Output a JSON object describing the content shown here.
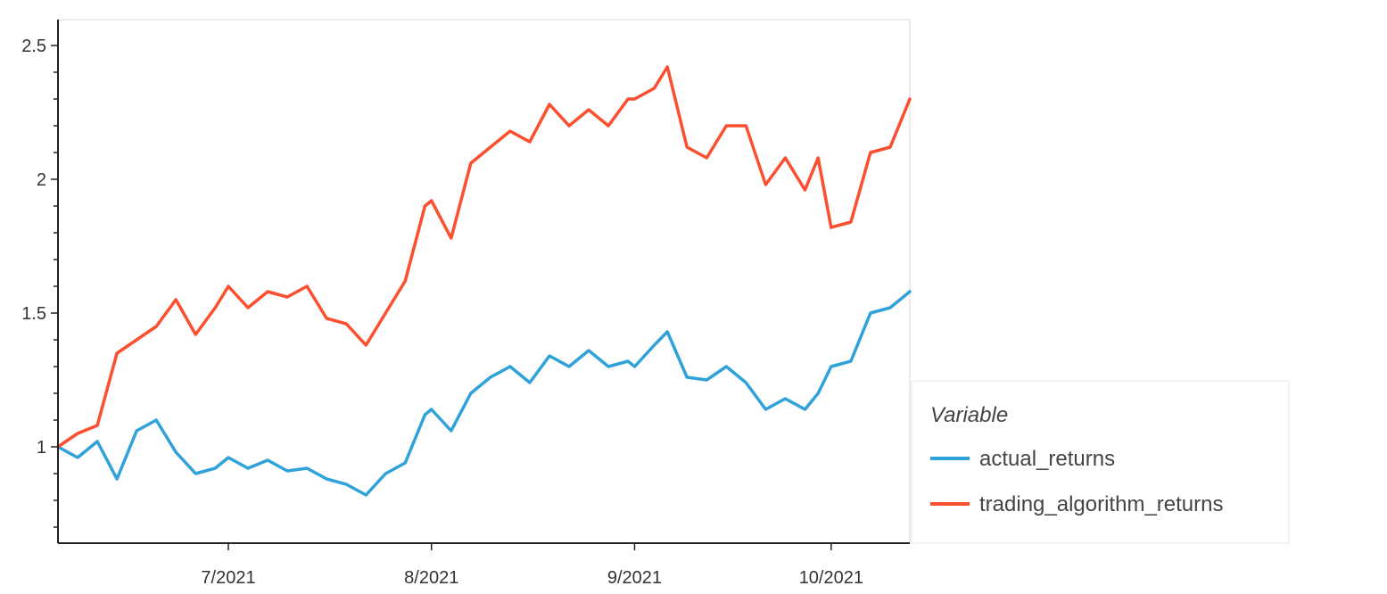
{
  "chart_data": {
    "type": "line",
    "title": "",
    "xlabel": "",
    "ylabel": "",
    "x_range": [
      "2021-06-05",
      "2021-10-13"
    ],
    "ylim": [
      0.6,
      2.6
    ],
    "grid": false,
    "legend_position": "bottom-right",
    "legend_title": "Variable",
    "x_tick_labels": [
      {
        "label": "7/2021",
        "value": "2021-07-01"
      },
      {
        "label": "8/2021",
        "value": "2021-08-01"
      },
      {
        "label": "9/2021",
        "value": "2021-09-01"
      },
      {
        "label": "10/2021",
        "value": "2021-10-01"
      }
    ],
    "y_tick_labels": [
      {
        "label": "1",
        "value": 1
      },
      {
        "label": "1.5",
        "value": 1.5
      },
      {
        "label": "2",
        "value": 2
      },
      {
        "label": "2.5",
        "value": 2.5
      }
    ],
    "series": [
      {
        "name": "actual_returns",
        "color": "#30a2da",
        "x": [
          "2021-06-05",
          "2021-06-08",
          "2021-06-11",
          "2021-06-14",
          "2021-06-17",
          "2021-06-20",
          "2021-06-23",
          "2021-06-26",
          "2021-06-29",
          "2021-07-01",
          "2021-07-04",
          "2021-07-07",
          "2021-07-10",
          "2021-07-13",
          "2021-07-16",
          "2021-07-19",
          "2021-07-22",
          "2021-07-25",
          "2021-07-28",
          "2021-07-31",
          "2021-08-01",
          "2021-08-04",
          "2021-08-07",
          "2021-08-10",
          "2021-08-13",
          "2021-08-16",
          "2021-08-19",
          "2021-08-22",
          "2021-08-25",
          "2021-08-28",
          "2021-08-31",
          "2021-09-01",
          "2021-09-04",
          "2021-09-06",
          "2021-09-09",
          "2021-09-12",
          "2021-09-15",
          "2021-09-18",
          "2021-09-21",
          "2021-09-24",
          "2021-09-27",
          "2021-09-29",
          "2021-10-01",
          "2021-10-04",
          "2021-10-07",
          "2021-10-10",
          "2021-10-13"
        ],
        "y": [
          1.0,
          0.96,
          1.02,
          0.88,
          1.06,
          1.1,
          0.98,
          0.9,
          0.92,
          0.96,
          0.92,
          0.95,
          0.91,
          0.92,
          0.88,
          0.86,
          0.82,
          0.9,
          0.94,
          1.12,
          1.14,
          1.06,
          1.2,
          1.26,
          1.3,
          1.24,
          1.34,
          1.3,
          1.36,
          1.3,
          1.32,
          1.3,
          1.38,
          1.43,
          1.26,
          1.25,
          1.3,
          1.24,
          1.14,
          1.18,
          1.14,
          1.2,
          1.3,
          1.32,
          1.5,
          1.52,
          1.58
        ]
      },
      {
        "name": "trading_algorithm_returns",
        "color": "#fc4f30",
        "x": [
          "2021-06-05",
          "2021-06-08",
          "2021-06-11",
          "2021-06-14",
          "2021-06-17",
          "2021-06-20",
          "2021-06-23",
          "2021-06-26",
          "2021-06-29",
          "2021-07-01",
          "2021-07-04",
          "2021-07-07",
          "2021-07-10",
          "2021-07-13",
          "2021-07-16",
          "2021-07-19",
          "2021-07-22",
          "2021-07-25",
          "2021-07-28",
          "2021-07-31",
          "2021-08-01",
          "2021-08-04",
          "2021-08-07",
          "2021-08-10",
          "2021-08-13",
          "2021-08-16",
          "2021-08-19",
          "2021-08-22",
          "2021-08-25",
          "2021-08-28",
          "2021-08-31",
          "2021-09-01",
          "2021-09-04",
          "2021-09-06",
          "2021-09-09",
          "2021-09-12",
          "2021-09-15",
          "2021-09-18",
          "2021-09-21",
          "2021-09-24",
          "2021-09-27",
          "2021-09-29",
          "2021-10-01",
          "2021-10-04",
          "2021-10-07",
          "2021-10-10",
          "2021-10-13"
        ],
        "y": [
          1.0,
          1.05,
          1.08,
          1.35,
          1.4,
          1.45,
          1.55,
          1.42,
          1.52,
          1.6,
          1.52,
          1.58,
          1.56,
          1.6,
          1.48,
          1.46,
          1.38,
          1.5,
          1.62,
          1.9,
          1.92,
          1.78,
          2.06,
          2.12,
          2.18,
          2.14,
          2.28,
          2.2,
          2.26,
          2.2,
          2.3,
          2.3,
          2.34,
          2.42,
          2.12,
          2.08,
          2.2,
          2.2,
          1.98,
          2.08,
          1.96,
          2.08,
          1.82,
          1.84,
          2.1,
          2.12,
          2.3
        ]
      }
    ]
  }
}
